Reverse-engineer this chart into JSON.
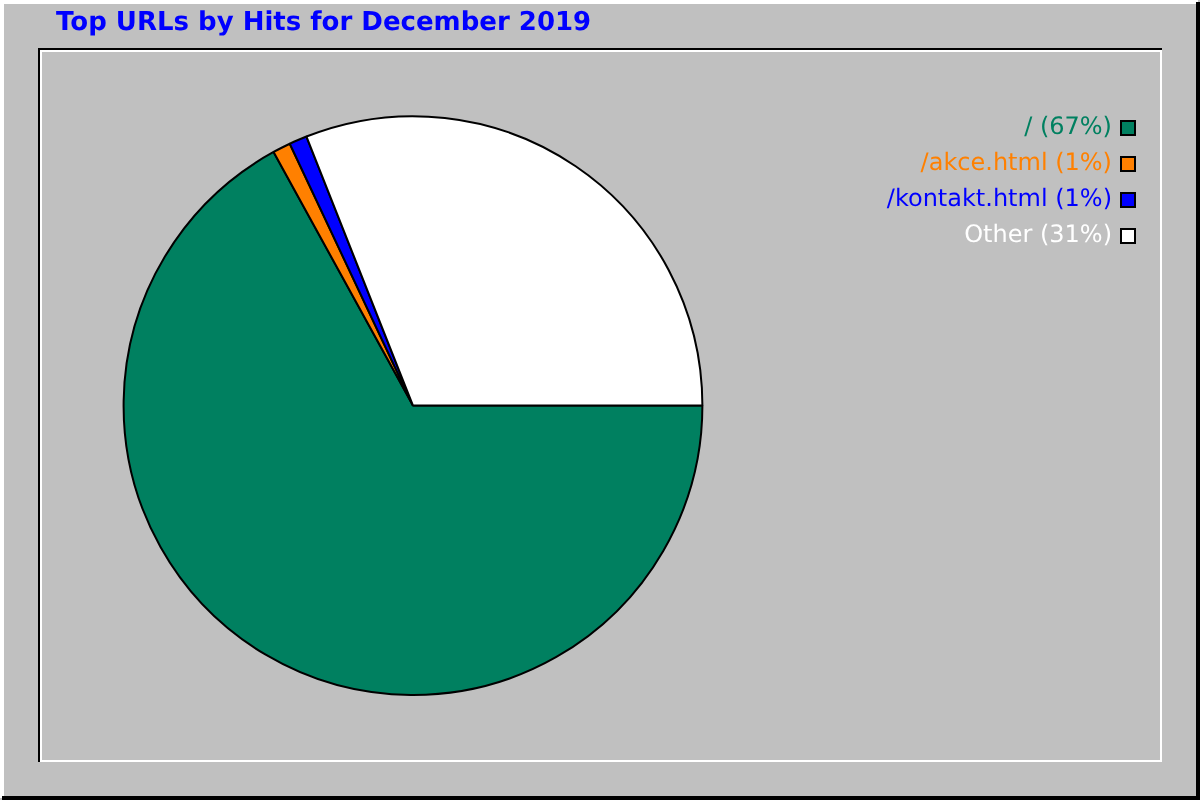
{
  "chart_data": {
    "type": "pie",
    "title": "Top URLs by Hits for December 2019",
    "categories": [
      "/ (67%)",
      "/akce.html (1%)",
      "/kontakt.html (1%)",
      "Other (31%)"
    ],
    "values": [
      67,
      1,
      1,
      31
    ],
    "colors": [
      "#008060",
      "#ff8000",
      "#0000ff",
      "#ffffff"
    ],
    "legend": "top right"
  }
}
